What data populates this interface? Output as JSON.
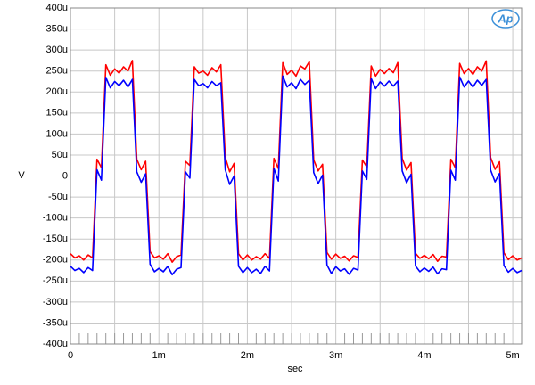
{
  "chart_data": {
    "type": "line",
    "logo": "Ap",
    "ylabel": "V",
    "xlabel": "sec",
    "xlim": [
      0,
      0.0051
    ],
    "ylim": [
      -0.0004,
      0.0004
    ],
    "grid": true,
    "xticks": [
      0,
      {
        "value": 0.001,
        "label": "1m"
      },
      {
        "value": 0.002,
        "label": "2m"
      },
      {
        "value": 0.003,
        "label": "3m"
      },
      {
        "value": 0.004,
        "label": "4m"
      },
      {
        "value": 0.005,
        "label": "5m"
      }
    ],
    "yticks": [
      {
        "value": -0.0004,
        "label": "-400u"
      },
      {
        "value": -0.00035,
        "label": "-350u"
      },
      {
        "value": -0.0003,
        "label": "-300u"
      },
      {
        "value": -0.00025,
        "label": "-250u"
      },
      {
        "value": -0.0002,
        "label": "-200u"
      },
      {
        "value": -0.00015,
        "label": "-150u"
      },
      {
        "value": -0.0001,
        "label": "-100u"
      },
      {
        "value": -5e-05,
        "label": "-50u"
      },
      0,
      {
        "value": 5e-05,
        "label": "50u"
      },
      {
        "value": 0.0001,
        "label": "100u"
      },
      {
        "value": 0.00015,
        "label": "150u"
      },
      {
        "value": 0.0002,
        "label": "200u"
      },
      {
        "value": 0.00025,
        "label": "250u"
      },
      {
        "value": 0.0003,
        "label": "300u"
      },
      {
        "value": 0.00035,
        "label": "350u"
      },
      {
        "value": 0.0004,
        "label": "400u"
      }
    ],
    "x": [
      0,
      5e-05,
      0.0001,
      0.00015,
      0.0002,
      0.00025,
      0.0003,
      0.00035,
      0.0004,
      0.00045,
      0.0005,
      0.00055,
      0.0006,
      0.00065,
      0.0007,
      0.00075,
      0.0008,
      0.00085,
      0.0009,
      0.00095,
      0.001,
      0.00105,
      0.0011,
      0.00115,
      0.0012,
      0.00125,
      0.0013,
      0.00135,
      0.0014,
      0.00145,
      0.0015,
      0.00155,
      0.0016,
      0.00165,
      0.0017,
      0.00175,
      0.0018,
      0.00185,
      0.0019,
      0.00195,
      0.002,
      0.00205,
      0.0021,
      0.00215,
      0.0022,
      0.00225,
      0.0023,
      0.00235,
      0.0024,
      0.00245,
      0.0025,
      0.00255,
      0.0026,
      0.00265,
      0.0027,
      0.00275,
      0.0028,
      0.00285,
      0.0029,
      0.00295,
      0.003,
      0.00305,
      0.0031,
      0.00315,
      0.0032,
      0.00325,
      0.0033,
      0.00335,
      0.0034,
      0.00345,
      0.0035,
      0.00355,
      0.0036,
      0.00365,
      0.0037,
      0.00375,
      0.0038,
      0.00385,
      0.0039,
      0.00395,
      0.004,
      0.00405,
      0.0041,
      0.00415,
      0.0042,
      0.00425,
      0.0043,
      0.00435,
      0.0044,
      0.00445,
      0.0045,
      0.00455,
      0.0046,
      0.00465,
      0.0047,
      0.00475,
      0.0048,
      0.00485,
      0.0049,
      0.00495,
      0.005,
      0.00505,
      0.0051
    ],
    "series": [
      {
        "color": "#ff0000",
        "values": [
          -0.000185,
          -0.000195,
          -0.00019,
          -0.0002,
          -0.000188,
          -0.000195,
          4e-05,
          2e-05,
          0.000265,
          0.00024,
          0.000255,
          0.000245,
          0.00026,
          0.00025,
          0.000275,
          4e-05,
          1.5e-05,
          3.5e-05,
          -0.00018,
          -0.000195,
          -0.00019,
          -0.000198,
          -0.000185,
          -0.000205,
          -0.000192,
          -0.000188,
          3.5e-05,
          2.5e-05,
          0.00026,
          0.000245,
          0.00025,
          0.00024,
          0.000258,
          0.000248,
          0.000265,
          4.5e-05,
          1e-05,
          3e-05,
          -0.000185,
          -0.0002,
          -0.000188,
          -0.0002,
          -0.000192,
          -0.000198,
          -0.000185,
          -0.000196,
          4.2e-05,
          1.8e-05,
          0.00027,
          0.000242,
          0.000252,
          0.000238,
          0.000262,
          0.000255,
          0.000272,
          3.8e-05,
          1.2e-05,
          2.8e-05,
          -0.000182,
          -0.000198,
          -0.000186,
          -0.000196,
          -0.000191,
          -0.000202,
          -0.00019,
          -0.000194,
          3.8e-05,
          2.2e-05,
          0.000262,
          0.000238,
          0.000254,
          0.000244,
          0.000256,
          0.000246,
          0.00027,
          4.2e-05,
          1.4e-05,
          3.2e-05,
          -0.000184,
          -0.000196,
          -0.000189,
          -0.000197,
          -0.000187,
          -0.000203,
          -0.000191,
          -0.000193,
          4e-05,
          2e-05,
          0.000268,
          0.000244,
          0.000256,
          0.000242,
          0.00026,
          0.00025,
          0.000274,
          4.4e-05,
          1.6e-05,
          3.4e-05,
          -0.000183,
          -0.000199,
          -0.00019,
          -0.0002,
          -0.000195
        ]
      },
      {
        "color": "#0000ff",
        "values": [
          -0.000215,
          -0.000225,
          -0.00022,
          -0.00023,
          -0.000218,
          -0.000225,
          1.5e-05,
          -1e-05,
          0.000235,
          0.00021,
          0.000225,
          0.000215,
          0.000228,
          0.000212,
          0.00023,
          1e-05,
          -1.5e-05,
          5e-06,
          -0.00021,
          -0.000228,
          -0.00022,
          -0.000228,
          -0.000215,
          -0.000235,
          -0.000222,
          -0.000218,
          1e-05,
          -5e-06,
          0.00023,
          0.000215,
          0.00022,
          0.00021,
          0.000225,
          0.000215,
          0.000222,
          1.5e-05,
          -2e-05,
          0,
          -0.000215,
          -0.00023,
          -0.000218,
          -0.00023,
          -0.000222,
          -0.000232,
          -0.000215,
          -0.000226,
          1.8e-05,
          -1.2e-05,
          0.000238,
          0.000212,
          0.000222,
          0.000208,
          0.00023,
          0.000218,
          0.000228,
          8e-06,
          -1.8e-05,
          2e-06,
          -0.000212,
          -0.000232,
          -0.000216,
          -0.000226,
          -0.000221,
          -0.000234,
          -0.00022,
          -0.000224,
          1.2e-05,
          -8e-06,
          0.000232,
          0.000208,
          0.000224,
          0.000214,
          0.000226,
          0.000214,
          0.000226,
          1.2e-05,
          -1.6e-05,
          4e-06,
          -0.000214,
          -0.000228,
          -0.000219,
          -0.000227,
          -0.000217,
          -0.000233,
          -0.000221,
          -0.000223,
          1.4e-05,
          -1e-05,
          0.000236,
          0.000212,
          0.000226,
          0.000212,
          0.000228,
          0.000216,
          0.00023,
          1.4e-05,
          -1.4e-05,
          6e-06,
          -0.000213,
          -0.000229,
          -0.00022,
          -0.00023,
          -0.000225
        ]
      }
    ]
  }
}
